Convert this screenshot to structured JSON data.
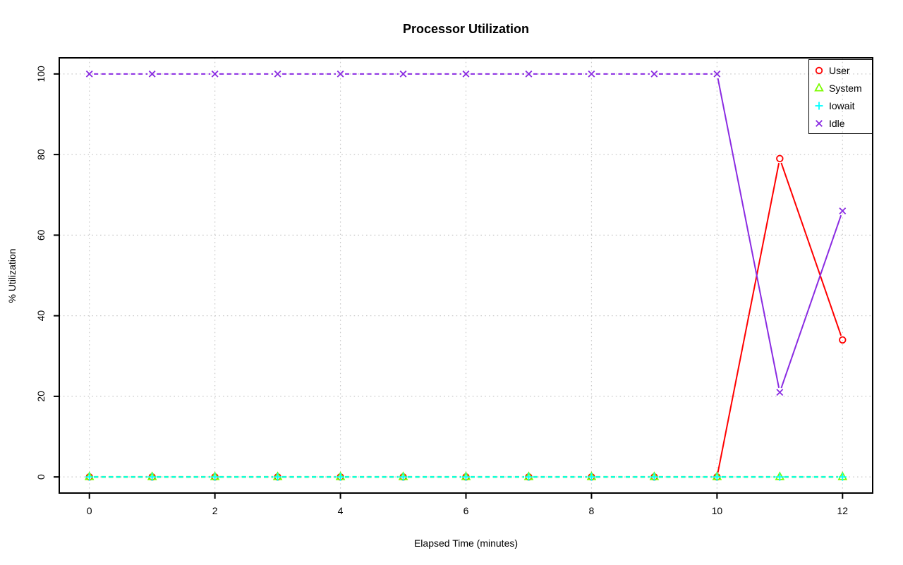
{
  "chart_data": {
    "type": "line",
    "title": "Processor Utilization",
    "xlabel": "Elapsed Time (minutes)",
    "ylabel": "% Utilization",
    "x": [
      0,
      1,
      2,
      3,
      4,
      5,
      6,
      7,
      8,
      9,
      10,
      11,
      12
    ],
    "series": [
      {
        "name": "User",
        "color": "#FF0000",
        "marker": "circle",
        "values": [
          0,
          0,
          0,
          0,
          0,
          0,
          0,
          0,
          0,
          0,
          0,
          79,
          34
        ]
      },
      {
        "name": "System",
        "color": "#7CFC00",
        "marker": "triangle",
        "values": [
          0,
          0,
          0,
          0,
          0,
          0,
          0,
          0,
          0,
          0,
          0,
          0,
          0
        ]
      },
      {
        "name": "Iowait",
        "color": "#00FFFF",
        "marker": "plus",
        "values": [
          0,
          0,
          0,
          0,
          0,
          0,
          0,
          0,
          0,
          0,
          0,
          0,
          0
        ]
      },
      {
        "name": "Idle",
        "color": "#8A2BE2",
        "marker": "x",
        "values": [
          100,
          100,
          100,
          100,
          100,
          100,
          100,
          100,
          100,
          100,
          100,
          21,
          66
        ]
      }
    ],
    "x_ticks": [
      0,
      2,
      4,
      6,
      8,
      10,
      12
    ],
    "y_ticks": [
      0,
      20,
      40,
      60,
      80,
      100
    ],
    "xlim": [
      -0.48,
      12.48
    ],
    "ylim": [
      -4,
      104
    ],
    "grid": true,
    "grid_color": "#C9C9C9",
    "axis_color": "#000000",
    "line_style": "dashed-between-equal-points-solid-on-transitions",
    "legend_position": "top-right"
  }
}
